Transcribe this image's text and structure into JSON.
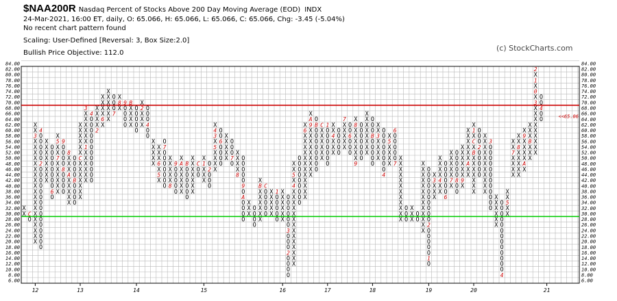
{
  "header": {
    "symbol": "$NAA200R",
    "title": "Nasdaq Percent of Stocks Above 200 Day Moving Average (EOD)",
    "exchange": "INDX",
    "quote": "24-Mar-2021, 16:00 ET, daily, O: 65.066, H: 65.066, L: 65.066, C: 65.066, Chg: -3.45 (-5.04%)",
    "pattern": "No recent chart pattern found",
    "scaling": "Scaling: User-Defined [Reversal: 3, Box Size:2.0]",
    "objective": "Bullish Price Objective: 112.0"
  },
  "copyright": "(c) StockCharts.com",
  "colors": {
    "x": "#000000",
    "o": "#000000",
    "month_mark": "#cc0000",
    "resistance": "#cc0000",
    "support": "#00cc00",
    "grid": "#b8b8b8",
    "frame": "#000000"
  },
  "chart_data": {
    "type": "point-and-figure",
    "box_size": 2,
    "reversal": 3,
    "ylim": [
      6,
      84
    ],
    "y_ticks": [
      "84.00",
      "82.00",
      "80.00",
      "78.00",
      "76.00",
      "74.00",
      "72.00",
      "70.00",
      "68.00",
      "66.00",
      "64.00",
      "62.00",
      "60.00",
      "58.00",
      "56.00",
      "54.00",
      "52.00",
      "50.00",
      "48.00",
      "46.00",
      "44.00",
      "42.00",
      "40.00",
      "38.00",
      "36.00",
      "34.00",
      "32.00",
      "30.00",
      "28.00",
      "26.00",
      "24.00",
      "22.00",
      "20.00",
      "18.00",
      "16.00",
      "14.00",
      "12.00",
      "10.00",
      "8.00",
      "6.00"
    ],
    "year_labels": [
      {
        "label": "12",
        "column": 2
      },
      {
        "label": "13",
        "column": 10
      },
      {
        "label": "14",
        "column": 20
      },
      {
        "label": "15",
        "column": 32
      },
      {
        "label": "16",
        "column": 46
      },
      {
        "label": "17",
        "column": 54
      },
      {
        "label": "18",
        "column": 62
      },
      {
        "label": "19",
        "column": 72
      },
      {
        "label": "20",
        "column": 80
      },
      {
        "label": "21",
        "column": 93
      }
    ],
    "columns": [
      {
        "t": "X",
        "lo": 30,
        "hi": 32
      },
      {
        "t": "O",
        "lo": 28,
        "hi": 30,
        "m": [
          [
            30,
            "C"
          ]
        ]
      },
      {
        "t": "X",
        "lo": 20,
        "hi": 62,
        "m": [
          [
            58,
            "3"
          ]
        ]
      },
      {
        "t": "O",
        "lo": 18,
        "hi": 60,
        "m": [
          [
            60,
            "4"
          ],
          [
            48,
            "2"
          ]
        ]
      },
      {
        "t": "X",
        "lo": 42,
        "hi": 56
      },
      {
        "t": "O",
        "lo": 36,
        "hi": 54,
        "m": [
          [
            38,
            "6"
          ]
        ]
      },
      {
        "t": "X",
        "lo": 38,
        "hi": 58,
        "m": [
          [
            50,
            "7"
          ],
          [
            56,
            "5"
          ]
        ]
      },
      {
        "t": "O",
        "lo": 38,
        "hi": 56,
        "m": [
          [
            46,
            "8"
          ],
          [
            56,
            "9"
          ]
        ]
      },
      {
        "t": "X",
        "lo": 34,
        "hi": 52,
        "m": [
          [
            52,
            "8"
          ],
          [
            44,
            "A"
          ]
        ]
      },
      {
        "t": "O",
        "lo": 34,
        "hi": 50,
        "m": [
          [
            42,
            "B"
          ]
        ]
      },
      {
        "t": "X",
        "lo": 36,
        "hi": 62,
        "m": [
          [
            50,
            "C"
          ]
        ]
      },
      {
        "t": "X",
        "lo": 42,
        "hi": 68,
        "m": [
          [
            54,
            "1"
          ],
          [
            68,
            "3"
          ]
        ]
      },
      {
        "t": "O",
        "lo": 42,
        "hi": 66,
        "m": [
          [
            66,
            "4"
          ]
        ]
      },
      {
        "t": "X",
        "lo": 60,
        "hi": 68,
        "m": [
          [
            60,
            "2"
          ]
        ]
      },
      {
        "t": "X",
        "lo": 62,
        "hi": 72,
        "m": [
          [
            64,
            "6"
          ]
        ]
      },
      {
        "t": "X",
        "lo": 64,
        "hi": 74
      },
      {
        "t": "O",
        "lo": 66,
        "hi": 72,
        "m": [
          [
            66,
            "7"
          ]
        ]
      },
      {
        "t": "X",
        "lo": 68,
        "hi": 72,
        "m": [
          [
            70,
            "8"
          ]
        ]
      },
      {
        "t": "O",
        "lo": 62,
        "hi": 70,
        "m": [
          [
            70,
            "9"
          ]
        ]
      },
      {
        "t": "X",
        "lo": 62,
        "hi": 70,
        "m": [
          [
            70,
            "B"
          ]
        ]
      },
      {
        "t": "O",
        "lo": 60,
        "hi": 68,
        "m": [
          [
            70,
            "1"
          ]
        ]
      },
      {
        "t": "X",
        "lo": 62,
        "hi": 70,
        "m": [
          [
            68,
            "2"
          ]
        ]
      },
      {
        "t": "O",
        "lo": 58,
        "hi": 68,
        "m": [
          [
            70,
            "3"
          ],
          [
            62,
            "4"
          ]
        ]
      },
      {
        "t": "X",
        "lo": 48,
        "hi": 56
      },
      {
        "t": "X",
        "lo": 42,
        "hi": 54,
        "m": [
          [
            44,
            "5"
          ],
          [
            48,
            "6"
          ]
        ]
      },
      {
        "t": "O",
        "lo": 40,
        "hi": 56,
        "m": [
          [
            54,
            "7"
          ]
        ]
      },
      {
        "t": "X",
        "lo": 40,
        "hi": 50,
        "m": [
          [
            40,
            "8"
          ]
        ]
      },
      {
        "t": "O",
        "lo": 38,
        "hi": 48,
        "m": [
          [
            48,
            "9"
          ]
        ]
      },
      {
        "t": "X",
        "lo": 38,
        "hi": 50,
        "m": [
          [
            48,
            "A"
          ]
        ]
      },
      {
        "t": "O",
        "lo": 36,
        "hi": 48,
        "m": [
          [
            48,
            "B"
          ]
        ]
      },
      {
        "t": "X",
        "lo": 38,
        "hi": 50
      },
      {
        "t": "O",
        "lo": 44,
        "hi": 48,
        "m": [
          [
            48,
            "C"
          ]
        ]
      },
      {
        "t": "X",
        "lo": 42,
        "hi": 50,
        "m": [
          [
            48,
            "1"
          ]
        ]
      },
      {
        "t": "O",
        "lo": 40,
        "hi": 48,
        "m": [
          [
            46,
            "2"
          ]
        ]
      },
      {
        "t": "X",
        "lo": 46,
        "hi": 62,
        "m": [
          [
            58,
            "3"
          ],
          [
            60,
            "4"
          ],
          [
            54,
            "5"
          ]
        ]
      },
      {
        "t": "O",
        "lo": 48,
        "hi": 60,
        "m": [
          [
            56,
            "6"
          ]
        ]
      },
      {
        "t": "X",
        "lo": 50,
        "hi": 58
      },
      {
        "t": "O",
        "lo": 48,
        "hi": 56,
        "m": [
          [
            50,
            "7"
          ]
        ]
      },
      {
        "t": "X",
        "lo": 44,
        "hi": 52,
        "m": [
          [
            44,
            "8"
          ]
        ]
      },
      {
        "t": "O",
        "lo": 28,
        "hi": 50,
        "m": [
          [
            40,
            "9"
          ],
          [
            36,
            "A"
          ]
        ]
      },
      {
        "t": "X",
        "lo": 30,
        "hi": 34
      },
      {
        "t": "O",
        "lo": 26,
        "hi": 32
      },
      {
        "t": "X",
        "lo": 28,
        "hi": 42,
        "m": [
          [
            40,
            "B"
          ]
        ]
      },
      {
        "t": "O",
        "lo": 30,
        "hi": 40,
        "m": [
          [
            40,
            "C"
          ]
        ]
      },
      {
        "t": "X",
        "lo": 30,
        "hi": 38
      },
      {
        "t": "O",
        "lo": 28,
        "hi": 38,
        "m": [
          [
            38,
            "1"
          ]
        ]
      },
      {
        "t": "X",
        "lo": 28,
        "hi": 38
      },
      {
        "t": "O",
        "lo": 8,
        "hi": 36,
        "m": [
          [
            24,
            "3"
          ],
          [
            16,
            "2"
          ]
        ]
      },
      {
        "t": "X",
        "lo": 12,
        "hi": 48,
        "m": [
          [
            40,
            "4"
          ],
          [
            44,
            "5"
          ]
        ]
      },
      {
        "t": "O",
        "lo": 34,
        "hi": 50
      },
      {
        "t": "X",
        "lo": 36,
        "hi": 62,
        "m": [
          [
            60,
            "6"
          ]
        ]
      },
      {
        "t": "X",
        "lo": 44,
        "hi": 66,
        "m": [
          [
            62,
            "9"
          ],
          [
            64,
            "A"
          ]
        ]
      },
      {
        "t": "O",
        "lo": 46,
        "hi": 64,
        "m": [
          [
            62,
            "B"
          ]
        ]
      },
      {
        "t": "X",
        "lo": 50,
        "hi": 62,
        "m": [
          [
            62,
            "C"
          ]
        ]
      },
      {
        "t": "O",
        "lo": 48,
        "hi": 62,
        "m": [
          [
            62,
            "1"
          ]
        ]
      },
      {
        "t": "X",
        "lo": 52,
        "hi": 62,
        "m": [
          [
            58,
            "4"
          ]
        ]
      },
      {
        "t": "O",
        "lo": 52,
        "hi": 60,
        "m": [
          [
            62,
            "5"
          ]
        ]
      },
      {
        "t": "X",
        "lo": 54,
        "hi": 64,
        "m": [
          [
            64,
            "7"
          ]
        ]
      },
      {
        "t": "O",
        "lo": 52,
        "hi": 62,
        "m": [
          [
            58,
            "6"
          ]
        ]
      },
      {
        "t": "X",
        "lo": 48,
        "hi": 64,
        "m": [
          [
            62,
            "8"
          ],
          [
            48,
            "9"
          ]
        ]
      },
      {
        "t": "O",
        "lo": 50,
        "hi": 62,
        "m": [
          [
            64,
            "A"
          ]
        ]
      },
      {
        "t": "X",
        "lo": 52,
        "hi": 66
      },
      {
        "t": "O",
        "lo": 48,
        "hi": 64,
        "m": [
          [
            58,
            "B"
          ]
        ]
      },
      {
        "t": "X",
        "lo": 50,
        "hi": 62,
        "m": [
          [
            58,
            "3"
          ]
        ]
      },
      {
        "t": "O",
        "lo": 44,
        "hi": 60,
        "m": [
          [
            44,
            "4"
          ]
        ]
      },
      {
        "t": "X",
        "lo": 48,
        "hi": 58,
        "m": [
          [
            56,
            "5"
          ]
        ]
      },
      {
        "t": "O",
        "lo": 48,
        "hi": 60,
        "m": [
          [
            60,
            "6"
          ],
          [
            48,
            "7"
          ]
        ]
      },
      {
        "t": "X",
        "lo": 28,
        "hi": 50
      },
      {
        "t": "O",
        "lo": 28,
        "hi": 32
      },
      {
        "t": "X",
        "lo": 28,
        "hi": 32
      },
      {
        "t": "O",
        "lo": 28,
        "hi": 30
      },
      {
        "t": "X",
        "lo": 24,
        "hi": 48
      },
      {
        "t": "O",
        "lo": 12,
        "hi": 46,
        "m": [
          [
            26,
            "2"
          ],
          [
            14,
            "1"
          ]
        ]
      },
      {
        "t": "X",
        "lo": 36,
        "hi": 44,
        "m": [
          [
            42,
            "3"
          ]
        ]
      },
      {
        "t": "X",
        "lo": 38,
        "hi": 50,
        "m": [
          [
            42,
            "4"
          ]
        ]
      },
      {
        "t": "O",
        "lo": 36,
        "hi": 48,
        "m": [
          [
            36,
            "6"
          ]
        ]
      },
      {
        "t": "X",
        "lo": 40,
        "hi": 52,
        "m": [
          [
            42,
            "7"
          ]
        ]
      },
      {
        "t": "O",
        "lo": 38,
        "hi": 52,
        "m": [
          [
            42,
            "8"
          ]
        ]
      },
      {
        "t": "X",
        "lo": 40,
        "hi": 54,
        "m": [
          [
            42,
            "9"
          ]
        ]
      },
      {
        "t": "X",
        "lo": 44,
        "hi": 60,
        "m": [
          [
            48,
            "A"
          ]
        ]
      },
      {
        "t": "X",
        "lo": 38,
        "hi": 62,
        "m": [
          [
            60,
            "1"
          ],
          [
            52,
            "B"
          ],
          [
            56,
            "C"
          ]
        ]
      },
      {
        "t": "O",
        "lo": 44,
        "hi": 60,
        "m": [
          [
            54,
            "2"
          ]
        ]
      },
      {
        "t": "X",
        "lo": 38,
        "hi": 58
      },
      {
        "t": "O",
        "lo": 32,
        "hi": 56,
        "m": [
          [
            56,
            "3"
          ]
        ]
      },
      {
        "t": "X",
        "lo": 26,
        "hi": 36
      },
      {
        "t": "O",
        "lo": 8,
        "hi": 34,
        "m": [
          [
            8,
            "4"
          ]
        ]
      },
      {
        "t": "X",
        "lo": 30,
        "hi": 38,
        "m": [
          [
            34,
            "5"
          ]
        ]
      },
      {
        "t": "X",
        "lo": 44,
        "hi": 56,
        "m": [
          [
            40,
            "6"
          ],
          [
            52,
            "7"
          ]
        ]
      },
      {
        "t": "X",
        "lo": 44,
        "hi": 58,
        "m": [
          [
            54,
            "8"
          ]
        ]
      },
      {
        "t": "X",
        "lo": 46,
        "hi": 60,
        "m": [
          [
            58,
            "9"
          ],
          [
            48,
            "A"
          ]
        ]
      },
      {
        "t": "X",
        "lo": 50,
        "hi": 62,
        "m": [
          [
            56,
            "B"
          ]
        ]
      },
      {
        "t": "X",
        "lo": 52,
        "hi": 82,
        "m": [
          [
            82,
            "2"
          ],
          [
            78,
            "1"
          ],
          [
            74,
            "0"
          ],
          [
            70,
            "3"
          ]
        ]
      },
      {
        "t": "O",
        "lo": 64,
        "hi": 72,
        "m": [
          [
            68,
            "4"
          ]
        ]
      }
    ],
    "annotations": [
      {
        "type": "current_price",
        "label": "65.06",
        "value": 65.066
      },
      {
        "type": "resistance",
        "label": "",
        "value": 69
      },
      {
        "type": "support",
        "label": "",
        "value": 29
      }
    ]
  }
}
